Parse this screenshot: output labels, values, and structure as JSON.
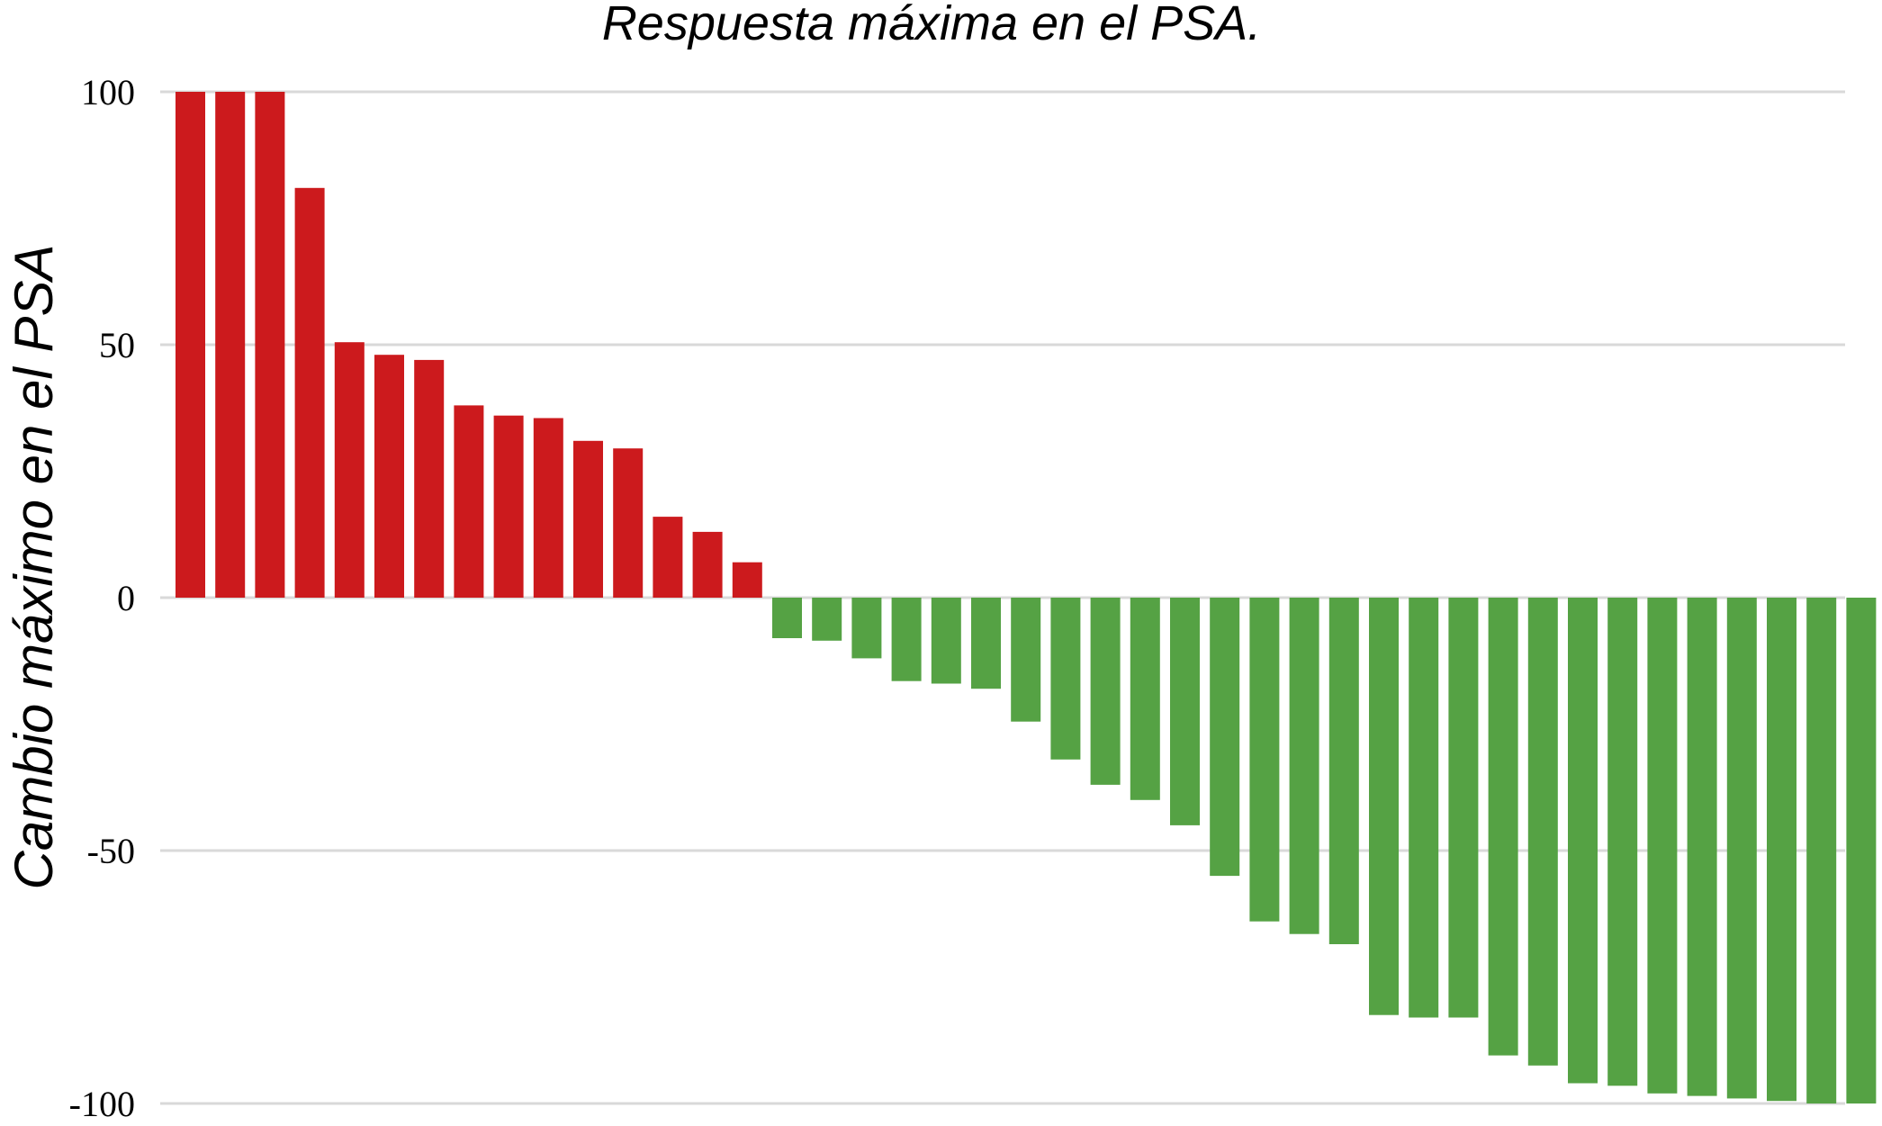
{
  "chart_data": {
    "type": "bar",
    "title": "Respuesta máxima en el PSA.",
    "xlabel": "",
    "ylabel": "Cambio máximo en el PSA",
    "ylim": [
      -100,
      100
    ],
    "yticks": [
      100,
      50,
      0,
      -50,
      -100
    ],
    "yticks_labels": [
      "100",
      "50",
      "0",
      "-50",
      "-100"
    ],
    "grid": true,
    "legend": "none",
    "colors": {
      "increase": "#cc1a1d",
      "decrease": "#55a244",
      "grid": "#d9d9d9"
    },
    "values": [
      100,
      100,
      100,
      81,
      50.5,
      48,
      47,
      38,
      36,
      35.5,
      31,
      29.5,
      16,
      13,
      7,
      -8,
      -8.5,
      -12,
      -16.5,
      -17,
      -18,
      -24.5,
      -32,
      -37,
      -40,
      -45,
      -55,
      -64,
      -66.5,
      -68.5,
      -82.5,
      -83,
      -83,
      -90.5,
      -92.5,
      -96,
      -96.5,
      -98,
      -98.5,
      -99,
      -99.5,
      -100,
      -100
    ]
  }
}
